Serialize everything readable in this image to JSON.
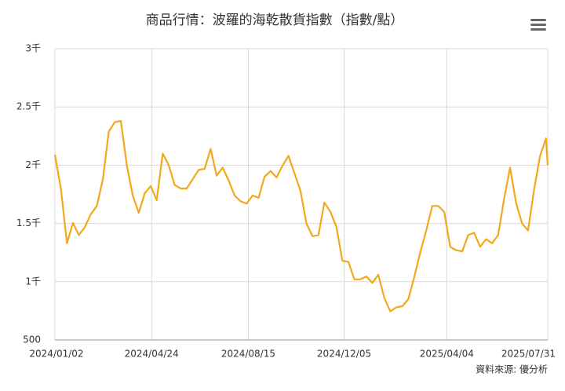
{
  "chart_data": {
    "type": "line",
    "title": "商品行情：波羅的海乾散貨指數（指數/點）",
    "source": "資料來源: 優分析",
    "x": [
      "2024/01/02",
      "2024/01/09",
      "2024/01/16",
      "2024/01/23",
      "2024/01/30",
      "2024/02/06",
      "2024/02/13",
      "2024/02/20",
      "2024/02/27",
      "2024/03/05",
      "2024/03/12",
      "2024/03/19",
      "2024/03/26",
      "2024/04/02",
      "2024/04/09",
      "2024/04/16",
      "2024/04/23",
      "2024/04/30",
      "2024/05/07",
      "2024/05/14",
      "2024/05/21",
      "2024/05/28",
      "2024/06/04",
      "2024/06/11",
      "2024/06/18",
      "2024/06/25",
      "2024/07/02",
      "2024/07/09",
      "2024/07/16",
      "2024/07/23",
      "2024/07/30",
      "2024/08/06",
      "2024/08/13",
      "2024/08/20",
      "2024/08/27",
      "2024/09/03",
      "2024/09/10",
      "2024/09/17",
      "2024/09/24",
      "2024/10/01",
      "2024/10/08",
      "2024/10/15",
      "2024/10/22",
      "2024/10/29",
      "2024/11/05",
      "2024/11/12",
      "2024/11/19",
      "2024/11/26",
      "2024/12/03",
      "2024/12/10",
      "2024/12/17",
      "2024/12/24",
      "2024/12/31",
      "2025/01/07",
      "2025/01/14",
      "2025/01/21",
      "2025/01/28",
      "2025/02/04",
      "2025/02/11",
      "2025/02/18",
      "2025/02/25",
      "2025/03/04",
      "2025/03/11",
      "2025/03/18",
      "2025/03/25",
      "2025/04/01",
      "2025/04/08",
      "2025/04/15",
      "2025/04/22",
      "2025/04/29",
      "2025/05/06",
      "2025/05/13",
      "2025/05/20",
      "2025/05/27",
      "2025/06/03",
      "2025/06/10",
      "2025/06/17",
      "2025/06/24",
      "2025/07/01",
      "2025/07/08",
      "2025/07/15",
      "2025/07/22",
      "2025/07/29",
      "2025/07/31"
    ],
    "series": [
      {
        "name": "波羅的海乾散貨指數",
        "color": "#f2a81d",
        "values": [
          2090,
          1800,
          1330,
          1505,
          1400,
          1470,
          1580,
          1650,
          1880,
          2290,
          2370,
          2380,
          2000,
          1740,
          1590,
          1760,
          1820,
          1700,
          2100,
          2000,
          1830,
          1800,
          1800,
          1880,
          1960,
          1970,
          2140,
          1910,
          1980,
          1870,
          1740,
          1690,
          1670,
          1740,
          1720,
          1900,
          1950,
          1895,
          1995,
          2080,
          1930,
          1780,
          1500,
          1390,
          1400,
          1680,
          1600,
          1470,
          1180,
          1170,
          1020,
          1020,
          1045,
          990,
          1060,
          860,
          745,
          780,
          790,
          850,
          1040,
          1250,
          1440,
          1650,
          1650,
          1600,
          1300,
          1270,
          1260,
          1400,
          1420,
          1300,
          1365,
          1330,
          1400,
          1710,
          1980,
          1675,
          1500,
          1440,
          1790,
          2080,
          2230,
          2000
        ]
      }
    ],
    "xlim": [
      "2024/01/02",
      "2025/07/31"
    ],
    "xticks": [
      "2024/01/02",
      "2024/04/24",
      "2024/08/15",
      "2024/12/05",
      "2025/04/04",
      "2025/07/31"
    ],
    "ylim": [
      500,
      3000
    ],
    "yticks": [
      {
        "value": 500,
        "label": "500"
      },
      {
        "value": 1000,
        "label": "1千"
      },
      {
        "value": 1500,
        "label": "1.5千"
      },
      {
        "value": 2000,
        "label": "2千"
      },
      {
        "value": 2500,
        "label": "2.5千"
      },
      {
        "value": 3000,
        "label": "3千"
      }
    ],
    "grid": true
  }
}
